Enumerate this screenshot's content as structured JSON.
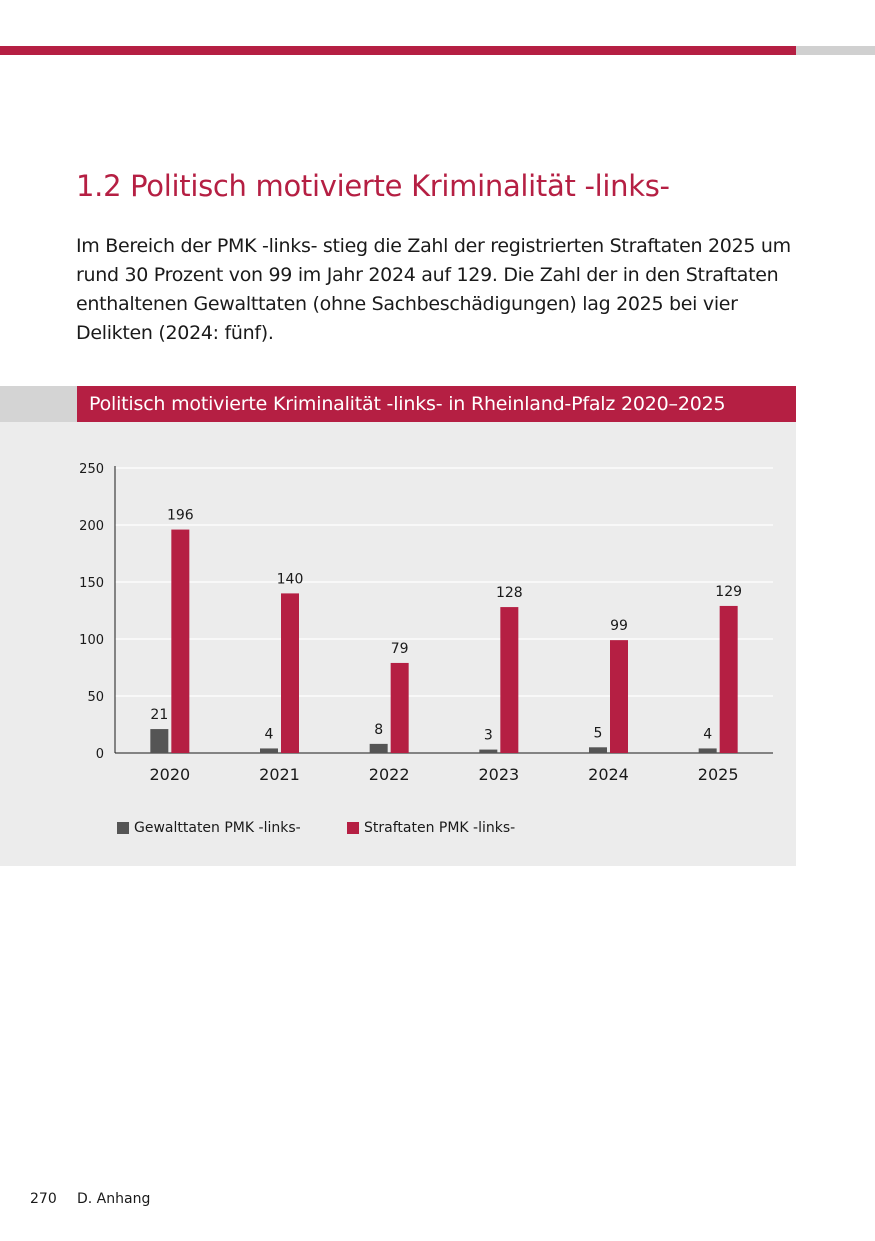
{
  "page": {
    "section_title": "1.2 Politisch motivierte Kriminalität -links-",
    "body_text": "Im Bereich der PMK -links- stieg die Zahl der registrierten Straftaten 2025 um rund 30 Prozent von 99 im Jahr 2024 auf 129. Die Zahl der in den Straftaten enthaltenen Gewalttaten (ohne Sachbeschädigungen) lag 2025 bei vier Delikten (2024: fünf).",
    "page_number": "270",
    "footer_section": "D. Anhang"
  },
  "colors": {
    "accent": "#b51f43",
    "series_dark": "#555555",
    "panel_bg": "#ececec"
  },
  "chart_data": {
    "type": "bar",
    "title": "Politisch motivierte Kriminalität -links- in Rheinland-Pfalz 2020–2025",
    "categories": [
      "2020",
      "2021",
      "2022",
      "2023",
      "2024",
      "2025"
    ],
    "series": [
      {
        "name": "Gewalttaten PMK -links-",
        "values": [
          21,
          4,
          8,
          3,
          5,
          4
        ],
        "color": "#555555"
      },
      {
        "name": "Straftaten PMK -links-",
        "values": [
          196,
          140,
          79,
          128,
          99,
          129
        ],
        "color": "#b51f43"
      }
    ],
    "xlabel": "",
    "ylabel": "",
    "ylim": [
      0,
      250
    ],
    "yticks": [
      0,
      50,
      100,
      150,
      200,
      250
    ],
    "grid": true,
    "legend": "bottom-left",
    "data_labels": true
  }
}
